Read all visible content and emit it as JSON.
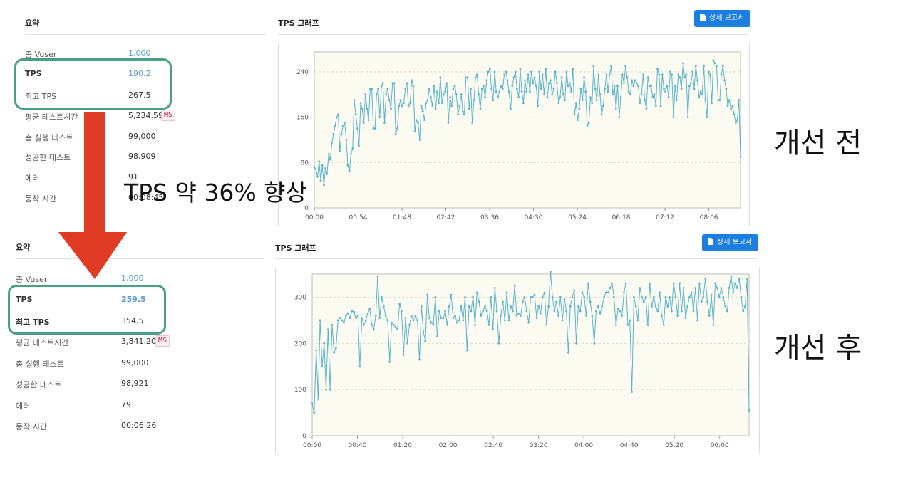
{
  "panel_before": {
    "summary_title": "요약",
    "rows": [
      {
        "label": "총 Vuser",
        "value": "1,000"
      },
      {
        "label": "TPS",
        "value": "190.2"
      },
      {
        "label": "최고 TPS",
        "value": "267.5"
      },
      {
        "label": "평균 테스트시간",
        "value": "5,234.59",
        "unit": "MS"
      },
      {
        "label": "총 실행 테스트",
        "value": "99,000"
      },
      {
        "label": "성공한 테스트",
        "value": "98,909"
      },
      {
        "label": "에러",
        "value": "91"
      },
      {
        "label": "동작 시간",
        "value": "00:08:45"
      }
    ],
    "graph_title": "TPS 그래프",
    "report_button": "상세 보고서"
  },
  "panel_after": {
    "summary_title": "요약",
    "rows": [
      {
        "label": "총 Vuser",
        "value": "1,000"
      },
      {
        "label": "TPS",
        "value": "259.5"
      },
      {
        "label": "최고 TPS",
        "value": "354.5"
      },
      {
        "label": "평균 테스트시간",
        "value": "3,841.20",
        "unit": "MS"
      },
      {
        "label": "총 실행 테스트",
        "value": "99,000"
      },
      {
        "label": "성공한 테스트",
        "value": "98,921"
      },
      {
        "label": "에러",
        "value": "79"
      },
      {
        "label": "동작 시간",
        "value": "00:06:26"
      }
    ],
    "graph_title": "TPS 그래프",
    "report_button": "상세 보고서"
  },
  "annotations": {
    "overlay": "TPS 약 36% 향상",
    "label_before": "개선 전",
    "label_after": "개선 후"
  },
  "colors": {
    "highlight_border": "#4a9e85",
    "arrow": "#e03b24",
    "line": "#5ab4c9",
    "plot_bg": "#fcfbf1",
    "button": "#1a7fe0",
    "link_value": "#5a9bd5"
  },
  "chart_data": [
    {
      "type": "line",
      "xlabel": "",
      "ylabel": "",
      "ylim": [
        0,
        275
      ],
      "yticks": [
        0,
        80,
        160,
        240
      ],
      "xticks": [
        "00:00",
        "00:54",
        "01:48",
        "02:42",
        "03:36",
        "04:30",
        "05:24",
        "06:18",
        "07:12",
        "08:06"
      ],
      "x_range_seconds": [
        0,
        525
      ],
      "series": [
        {
          "values": [
            72,
            68,
            55,
            82,
            48,
            75,
            40,
            70,
            60,
            95,
            85,
            115,
            130,
            145,
            160,
            165,
            100,
            130,
            145,
            150,
            120,
            75,
            65,
            95,
            105,
            190,
            165,
            140,
            110,
            185,
            175,
            150,
            200,
            175,
            155,
            210,
            210,
            140,
            140,
            200,
            210,
            160,
            215,
            220,
            150,
            200,
            210,
            190,
            175,
            220,
            220,
            130,
            140,
            180,
            190,
            180,
            185,
            210,
            220,
            180,
            185,
            225,
            215,
            135,
            155,
            150,
            120,
            180,
            170,
            155,
            185,
            190,
            210,
            195,
            180,
            215,
            175,
            205,
            185,
            230,
            185,
            200,
            205,
            220,
            150,
            195,
            180,
            210,
            215,
            200,
            165,
            180,
            200,
            170,
            165,
            230,
            230,
            175,
            210,
            150,
            190,
            230,
            235,
            200,
            175,
            210,
            215,
            195,
            225,
            240,
            245,
            210,
            190,
            240,
            205,
            195,
            205,
            215,
            210,
            235,
            240,
            225,
            205,
            175,
            215,
            230,
            240,
            210,
            195,
            245,
            205,
            185,
            225,
            205,
            235,
            205,
            240,
            220,
            230,
            215,
            180,
            240,
            210,
            235,
            200,
            245,
            195,
            220,
            225,
            200,
            210,
            240,
            220,
            185,
            195,
            230,
            200,
            190,
            240,
            215,
            220,
            205,
            245,
            165,
            185,
            155,
            175,
            210,
            190,
            230,
            205,
            145,
            150,
            195,
            185,
            250,
            210,
            190,
            235,
            200,
            165,
            180,
            210,
            235,
            205,
            235,
            250,
            200,
            215,
            175,
            215,
            160,
            195,
            235,
            220,
            250,
            230,
            205,
            200,
            225,
            215,
            225,
            220,
            215,
            185,
            200,
            235,
            190,
            175,
            230,
            215,
            215,
            195,
            200,
            180,
            245,
            235,
            180,
            235,
            210,
            205,
            215,
            195,
            240,
            235,
            160,
            215,
            190,
            235,
            230,
            210,
            255,
            230,
            235,
            160,
            215,
            220,
            240,
            210,
            250,
            225,
            195,
            205,
            200,
            250,
            190,
            160,
            240,
            235,
            185,
            260,
            255,
            250,
            190,
            190,
            235,
            250,
            225,
            210,
            180,
            190,
            175,
            180,
            165,
            150,
            155,
            190,
            90
          ]
        }
      ]
    },
    {
      "type": "line",
      "xlabel": "",
      "ylabel": "",
      "ylim": [
        0,
        350
      ],
      "yticks": [
        0,
        100,
        200,
        300
      ],
      "xticks": [
        "00:00",
        "00:40",
        "01:20",
        "02:00",
        "02:40",
        "03:20",
        "04:00",
        "04:40",
        "05:20",
        "06:00"
      ],
      "x_range_seconds": [
        0,
        386
      ],
      "series": [
        {
          "values": [
            70,
            50,
            185,
            80,
            250,
            150,
            200,
            100,
            230,
            100,
            240,
            180,
            190,
            250,
            255,
            250,
            245,
            260,
            265,
            255,
            270,
            268,
            255,
            260,
            150,
            255,
            240,
            250,
            265,
            275,
            240,
            230,
            260,
            345,
            255,
            300,
            280,
            260,
            250,
            160,
            245,
            240,
            235,
            230,
            285,
            270,
            175,
            255,
            200,
            240,
            260,
            250,
            260,
            250,
            165,
            280,
            225,
            205,
            305,
            255,
            245,
            240,
            300,
            215,
            270,
            255,
            255,
            270,
            240,
            280,
            305,
            255,
            260,
            245,
            250,
            280,
            250,
            300,
            185,
            280,
            270,
            300,
            240,
            310,
            290,
            260,
            270,
            280,
            270,
            240,
            300,
            230,
            320,
            270,
            200,
            260,
            290,
            250,
            310,
            250,
            280,
            270,
            325,
            260,
            265,
            260,
            290,
            300,
            270,
            245,
            300,
            300,
            305,
            255,
            280,
            265,
            300,
            310,
            240,
            280,
            355,
            300,
            270,
            290,
            260,
            300,
            250,
            295,
            270,
            180,
            280,
            300,
            315,
            200,
            280,
            270,
            310,
            300,
            260,
            330,
            290,
            260,
            200,
            270,
            280,
            265,
            280,
            300,
            310,
            310,
            320,
            330,
            300,
            240,
            275,
            270,
            260,
            310,
            330,
            240,
            250,
            95,
            300,
            280,
            250,
            320,
            300,
            290,
            300,
            240,
            330,
            280,
            300,
            280,
            270,
            310,
            260,
            240,
            300,
            280,
            300,
            270,
            330,
            300,
            260,
            330,
            270,
            320,
            255,
            280,
            300,
            310,
            270,
            320,
            250,
            330,
            290,
            300,
            340,
            290,
            260,
            305,
            240,
            330,
            320,
            300,
            320,
            300,
            280,
            270,
            320,
            345,
            310,
            330,
            320,
            340,
            300,
            270,
            280,
            340,
            55
          ]
        }
      ]
    }
  ]
}
